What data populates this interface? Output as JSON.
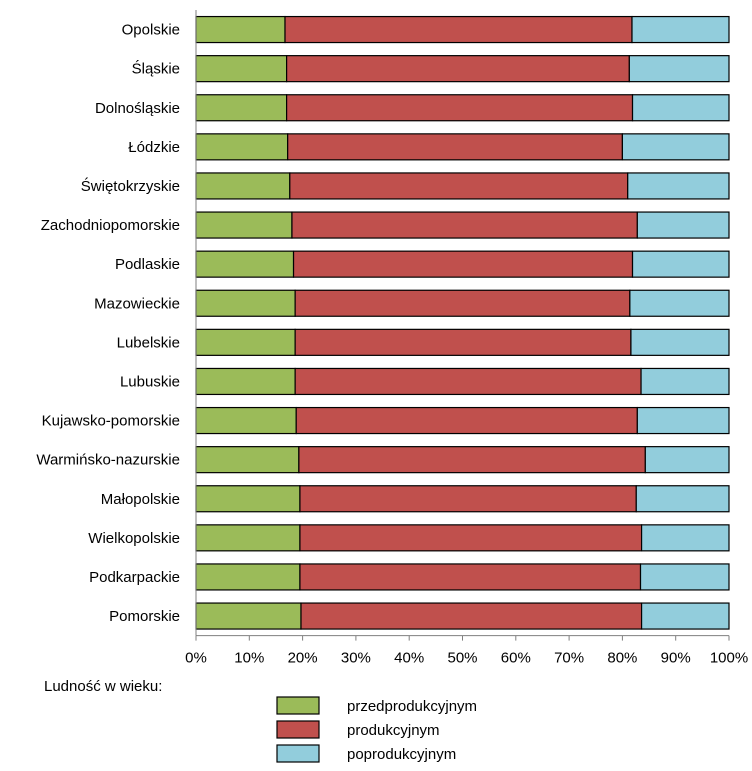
{
  "chart_data": {
    "type": "bar",
    "orientation": "horizontal",
    "stacked": "percent",
    "categories": [
      "Opolskie",
      "Śląskie",
      "Dolnośląskie",
      "Łódzkie",
      "Świętokrzyskie",
      "Zachodniopomorskie",
      "Podlaskie",
      "Mazowieckie",
      "Lubelskie",
      "Lubuskie",
      "Kujawsko-pomorskie",
      "Warmińsko-nazurskie",
      "Małopolskie",
      "Wielkopolskie",
      "Podkarpackie",
      "Pomorskie"
    ],
    "series": [
      {
        "name": "przedprodukcyjnym",
        "color": "#9BBB59",
        "values": [
          16.7,
          17.0,
          17.0,
          17.2,
          17.6,
          18.0,
          18.3,
          18.6,
          18.6,
          18.6,
          18.8,
          19.3,
          19.5,
          19.5,
          19.5,
          19.7
        ]
      },
      {
        "name": "produkcyjnym",
        "color": "#C0504D",
        "values": [
          65.1,
          64.3,
          64.9,
          62.8,
          63.4,
          64.8,
          63.6,
          62.8,
          63.0,
          64.9,
          64.0,
          65.0,
          63.1,
          64.1,
          63.9,
          63.9
        ]
      },
      {
        "name": "poprodukcyjnym",
        "color": "#92CDDC",
        "values": [
          18.2,
          18.7,
          18.1,
          20.0,
          19.0,
          17.2,
          18.1,
          18.6,
          18.4,
          16.5,
          17.2,
          15.7,
          17.4,
          16.4,
          16.6,
          16.4
        ]
      }
    ],
    "xlim": [
      0,
      100
    ],
    "x_ticks": [
      "0%",
      "10%",
      "20%",
      "30%",
      "40%",
      "50%",
      "60%",
      "70%",
      "80%",
      "90%",
      "100%"
    ],
    "xlabel": "",
    "ylabel": "",
    "grid": false,
    "legend_title": "Ludność w wieku:",
    "legend_position": "bottom"
  }
}
